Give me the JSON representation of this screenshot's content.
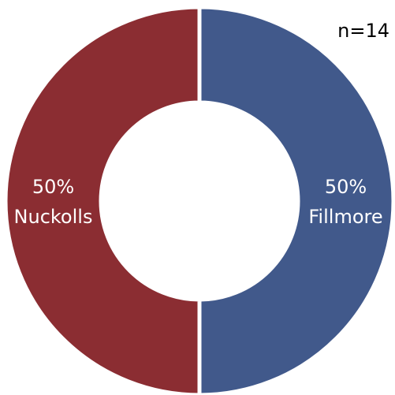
{
  "chart_data": {
    "type": "donut",
    "annotation": "n=14",
    "categories": [
      "Fillmore",
      "Nuckolls"
    ],
    "values": [
      50,
      50
    ],
    "value_labels": [
      "50%",
      "50%"
    ],
    "colors": [
      "#41598b",
      "#8b2d32"
    ]
  }
}
